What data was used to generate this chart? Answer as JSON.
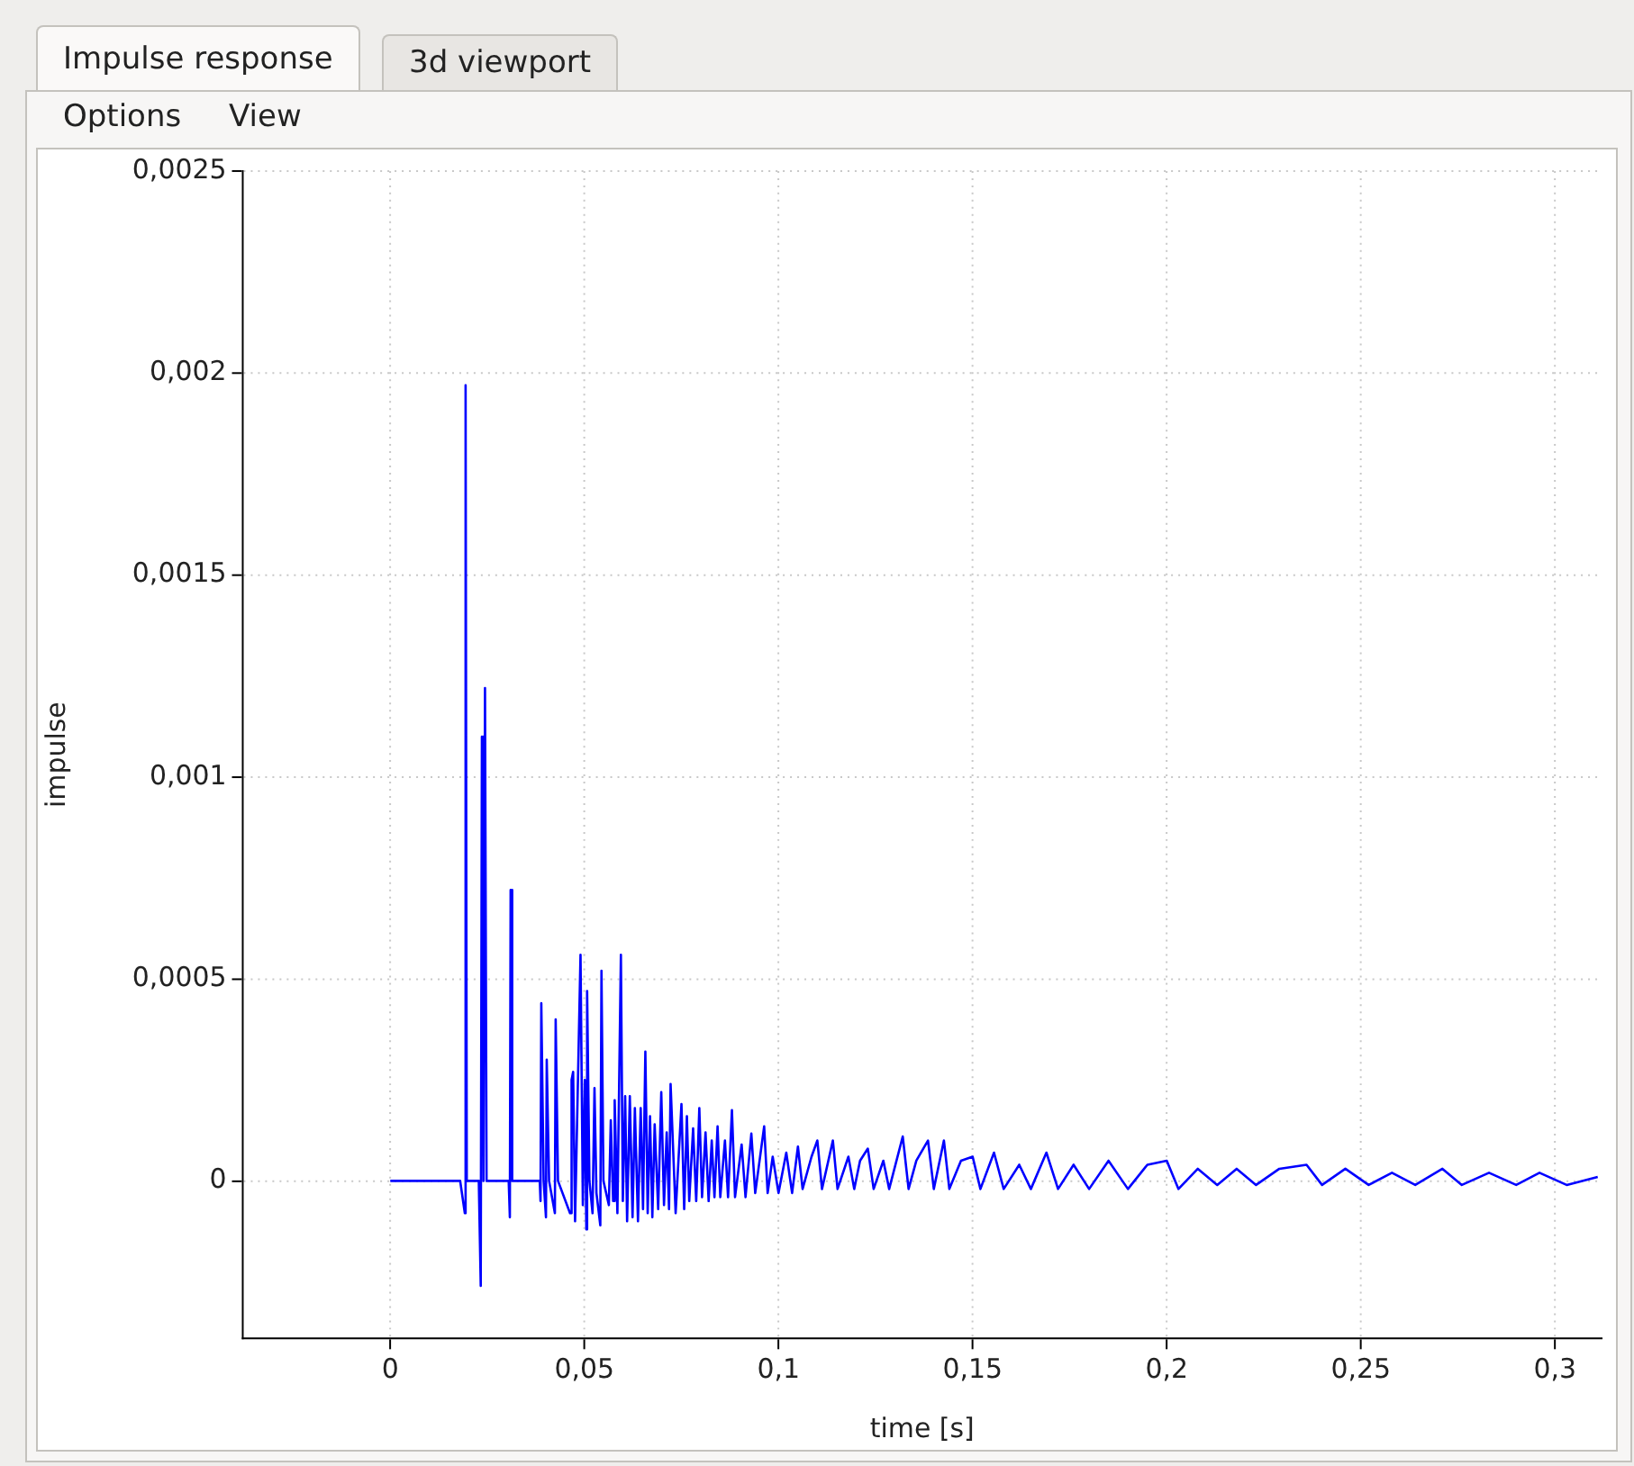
{
  "chart_data": {
    "type": "line",
    "xlabel": "time [s]",
    "ylabel": "impulse",
    "annotations": [
      "Impulse response",
      "3d viewport",
      "Options",
      "View"
    ],
    "xlim": [
      -0.038,
      0.312
    ],
    "ylim": [
      -0.00039,
      0.0025
    ],
    "xticks": [
      0,
      {
        "value": 0.05,
        "label": "0,05"
      },
      {
        "value": 0.1,
        "label": "0,1"
      },
      {
        "value": 0.15,
        "label": "0,15"
      },
      {
        "value": 0.2,
        "label": "0,2"
      },
      {
        "value": 0.25,
        "label": "0,25"
      },
      {
        "value": 0.3,
        "label": "0,3"
      }
    ],
    "yticks": [
      0,
      {
        "value": 0.0005,
        "label": "0,0005"
      },
      {
        "value": 0.001,
        "label": "0,001"
      },
      {
        "value": 0.0015,
        "label": "0,0015"
      },
      {
        "value": 0.002,
        "label": "0,002"
      },
      {
        "value": 0.0025,
        "label": "0,0025"
      }
    ],
    "grid": true,
    "legend": false,
    "marker": "none",
    "line_style": "solid",
    "series": [
      {
        "color": "#0000ff",
        "x": [
          0,
          0.018,
          0.0192,
          0.0194,
          0.0197,
          0.0228,
          0.0233,
          0.0236,
          0.024,
          0.0244,
          0.0248,
          0.0305,
          0.0308,
          0.031,
          0.0314,
          0.0385,
          0.0387,
          0.0389,
          0.0395,
          0.0401,
          0.0403,
          0.0409,
          0.0424,
          0.0426,
          0.0432,
          0.0463,
          0.0467,
          0.0471,
          0.0476,
          0.049,
          0.0496,
          0.0501,
          0.0505,
          0.0507,
          0.0513,
          0.0521,
          0.0526,
          0.0531,
          0.0541,
          0.0544,
          0.0549,
          0.0563,
          0.0568,
          0.0574,
          0.0578,
          0.0585,
          0.0594,
          0.0599,
          0.0605,
          0.061,
          0.0617,
          0.0624,
          0.063,
          0.0638,
          0.0645,
          0.0651,
          0.0657,
          0.0663,
          0.0669,
          0.0675,
          0.0681,
          0.069,
          0.0698,
          0.0705,
          0.0712,
          0.0718,
          0.0722,
          0.0735,
          0.075,
          0.0757,
          0.0764,
          0.077,
          0.078,
          0.0788,
          0.0796,
          0.0803,
          0.0812,
          0.082,
          0.0828,
          0.0835,
          0.0843,
          0.085,
          0.0862,
          0.087,
          0.088,
          0.0888,
          0.0905,
          0.0915,
          0.093,
          0.094,
          0.0963,
          0.0972,
          0.0985,
          0.1,
          0.102,
          0.1035,
          0.105,
          0.1062,
          0.1085,
          0.11,
          0.1112,
          0.114,
          0.1152,
          0.118,
          0.1195,
          0.121,
          0.123,
          0.1245,
          0.127,
          0.1285,
          0.132,
          0.1335,
          0.1355,
          0.1385,
          0.14,
          0.1426,
          0.144,
          0.147,
          0.15,
          0.152,
          0.1555,
          0.158,
          0.162,
          0.165,
          0.169,
          0.172,
          0.176,
          0.18,
          0.185,
          0.19,
          0.195,
          0.2,
          0.203,
          0.208,
          0.213,
          0.218,
          0.223,
          0.229,
          0.236,
          0.24,
          0.246,
          0.252,
          0.258,
          0.264,
          0.271,
          0.276,
          0.283,
          0.29,
          0.296,
          0.303,
          0.311
        ],
        "values": [
          0,
          0,
          -8e-05,
          0.00197,
          0,
          0,
          -0.00026,
          0.0011,
          0,
          0.00122,
          0,
          0,
          -9e-05,
          0.00072,
          0,
          0,
          -5e-05,
          0.00044,
          0,
          -9e-05,
          0.0003,
          0,
          -8e-05,
          0.0004,
          0,
          -8e-05,
          0.00025,
          0.00027,
          -0.0001,
          0.00056,
          -6e-05,
          0.00025,
          -0.00012,
          0.00047,
          0,
          -8e-05,
          0.00023,
          -3e-05,
          -0.00011,
          0.00052,
          0,
          -6e-05,
          0.00015,
          -5e-05,
          0.0002,
          -8e-05,
          0.00056,
          -5e-05,
          0.00021,
          -0.0001,
          0.00021,
          -9e-05,
          0.00018,
          -0.0001,
          0.00018,
          -7e-05,
          0.00032,
          -8e-05,
          0.00016,
          -9e-05,
          0.00014,
          -7e-05,
          0.00022,
          -6e-05,
          0.00012,
          -7e-05,
          0.00024,
          -8e-05,
          0.00019,
          -7e-05,
          0.00016,
          -5e-05,
          0.00013,
          -5e-05,
          0.00018,
          -4e-05,
          0.00012,
          -5e-05,
          0.0001,
          -4e-05,
          0.000135,
          -4e-05,
          0.0001,
          -4e-05,
          0.000175,
          -4e-05,
          9e-05,
          -4e-05,
          0.000117,
          -3e-05,
          0.000135,
          -3e-05,
          6e-05,
          -3e-05,
          7e-05,
          -3e-05,
          8.5e-05,
          -2e-05,
          6e-05,
          0.0001,
          -2e-05,
          0.0001,
          -2e-05,
          6e-05,
          -2e-05,
          5e-05,
          8e-05,
          -2e-05,
          5e-05,
          -2e-05,
          0.00011,
          -2e-05,
          5e-05,
          0.0001,
          -2e-05,
          0.0001,
          -2e-05,
          5e-05,
          6e-05,
          -2e-05,
          7e-05,
          -2e-05,
          4e-05,
          -2e-05,
          7e-05,
          -2e-05,
          4e-05,
          -2e-05,
          5e-05,
          -2e-05,
          4e-05,
          5e-05,
          -2e-05,
          3e-05,
          -1e-05,
          3e-05,
          -1e-05,
          3e-05,
          4e-05,
          -1e-05,
          3e-05,
          -1e-05,
          2e-05,
          -1e-05,
          3e-05,
          -1e-05,
          2e-05,
          -1e-05,
          2e-05,
          -1e-05,
          1e-05
        ]
      }
    ]
  }
}
